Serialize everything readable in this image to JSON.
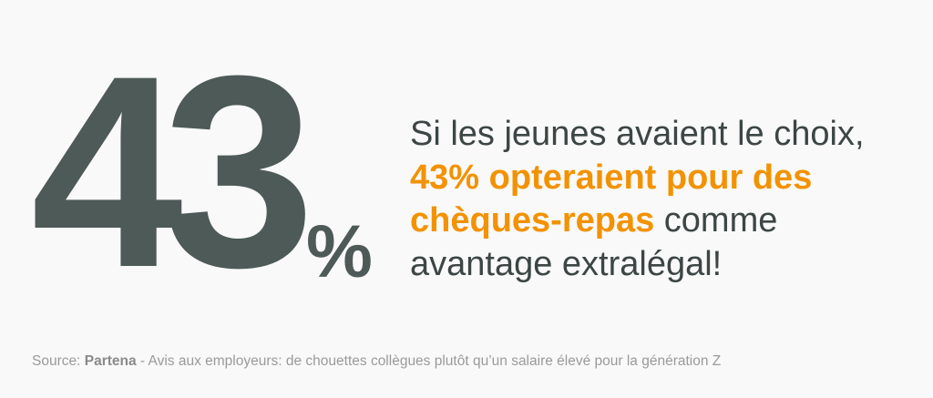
{
  "stat": {
    "number": "43",
    "unit": "%"
  },
  "statement": {
    "intro": "Si les jeunes avaient le choix,",
    "highlight_1": "43% opteraient pour des",
    "highlight_2": "chèques-repas",
    "rest_1": "comme",
    "rest_2": "avantage extralégal!"
  },
  "source": {
    "label": "Source:",
    "publisher": "Partena",
    "text": "- Avis aux employeurs: de chouettes collègues plutôt qu’un salaire élevé pour la génération Z"
  }
}
